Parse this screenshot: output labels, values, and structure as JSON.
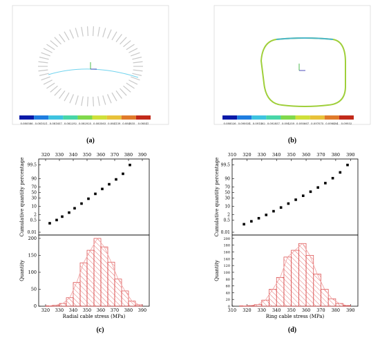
{
  "panels": {
    "a": {
      "label": "(a)",
      "colorbar": [
        "0.080586",
        "0.081021",
        "0.081657",
        "0.082292",
        "0.082925",
        "0.083563",
        "0.084139",
        "0.084835",
        "0.08541"
      ]
    },
    "b": {
      "label": "(b)",
      "colorbar": [
        "0.088526",
        "0.090034",
        "0.091462",
        "0.092857",
        "0.094259",
        "0.095667",
        "0.097075",
        "0.098484",
        "0.09932"
      ]
    },
    "c": {
      "label": "(c)"
    },
    "d": {
      "label": "(d)"
    }
  },
  "colorbar_colors": [
    "#0a1aa8",
    "#1f7de0",
    "#3ec3e0",
    "#48d6a8",
    "#80d94c",
    "#cfe03a",
    "#e8c23a",
    "#e07a2a",
    "#c22a1a"
  ],
  "chart_data": [
    {
      "id": "c",
      "type": "scatter",
      "title": "",
      "xlabel": "",
      "ylabel": "Cumulative quantity percentage",
      "axis_scale": "normal-probability",
      "xlim": [
        315,
        395
      ],
      "xticks": [
        "320",
        "330",
        "340",
        "350",
        "360",
        "370",
        "380",
        "390"
      ],
      "yticks": [
        "0.01",
        "0.5",
        "2",
        "10",
        "30",
        "50",
        "70",
        "90",
        "99.5"
      ],
      "x": [
        323,
        328,
        332,
        337,
        341,
        346,
        351,
        356,
        361,
        366,
        371,
        376,
        381
      ],
      "y": [
        0.2,
        0.5,
        1.2,
        3,
        7,
        15,
        28,
        45,
        63,
        78,
        89,
        96,
        99.5
      ]
    },
    {
      "id": "c-hist",
      "type": "bar",
      "title": "",
      "xlabel": "Radial cable stress (MPa)",
      "ylabel": "Quantity",
      "xlim": [
        315,
        395
      ],
      "ylim": [
        0,
        210
      ],
      "xticks": [
        "320",
        "330",
        "340",
        "350",
        "360",
        "370",
        "380",
        "390"
      ],
      "yticks": [
        "0",
        "50",
        "100",
        "150",
        "200"
      ],
      "bin_width": 5,
      "bins": [
        320,
        325,
        330,
        335,
        340,
        345,
        350,
        355,
        360,
        365,
        370,
        375,
        380,
        385
      ],
      "values": [
        1,
        3,
        8,
        25,
        70,
        128,
        165,
        200,
        175,
        130,
        80,
        45,
        15,
        4
      ]
    },
    {
      "id": "d",
      "type": "scatter",
      "title": "",
      "xlabel": "",
      "ylabel": "Cumulative quantity percentage",
      "axis_scale": "normal-probability",
      "xlim": [
        310,
        395
      ],
      "xticks": [
        "310",
        "320",
        "330",
        "340",
        "350",
        "360",
        "370",
        "380",
        "390"
      ],
      "yticks": [
        "0.01",
        "0.5",
        "2",
        "10",
        "30",
        "50",
        "70",
        "90",
        "99.5"
      ],
      "x": [
        318,
        323,
        328,
        333,
        338,
        343,
        348,
        353,
        358,
        363,
        368,
        373,
        378,
        383,
        388
      ],
      "y": [
        0.15,
        0.35,
        0.8,
        1.8,
        4,
        8,
        15,
        25,
        38,
        53,
        68,
        81,
        91,
        97,
        99.5
      ]
    },
    {
      "id": "d-hist",
      "type": "bar",
      "title": "",
      "xlabel": "Ring cable stress (MPa)",
      "ylabel": "Quantity",
      "xlim": [
        310,
        395
      ],
      "ylim": [
        0,
        210
      ],
      "xticks": [
        "310",
        "320",
        "330",
        "340",
        "350",
        "360",
        "370",
        "380",
        "390"
      ],
      "yticks": [
        "0",
        "20",
        "40",
        "60",
        "80",
        "100",
        "120",
        "140",
        "160",
        "180",
        "200"
      ],
      "bin_width": 5,
      "bins": [
        315,
        320,
        325,
        330,
        335,
        340,
        345,
        350,
        355,
        360,
        365,
        370,
        375,
        380,
        385
      ],
      "values": [
        1,
        2,
        5,
        18,
        50,
        85,
        145,
        165,
        185,
        150,
        95,
        50,
        22,
        8,
        2
      ]
    }
  ]
}
